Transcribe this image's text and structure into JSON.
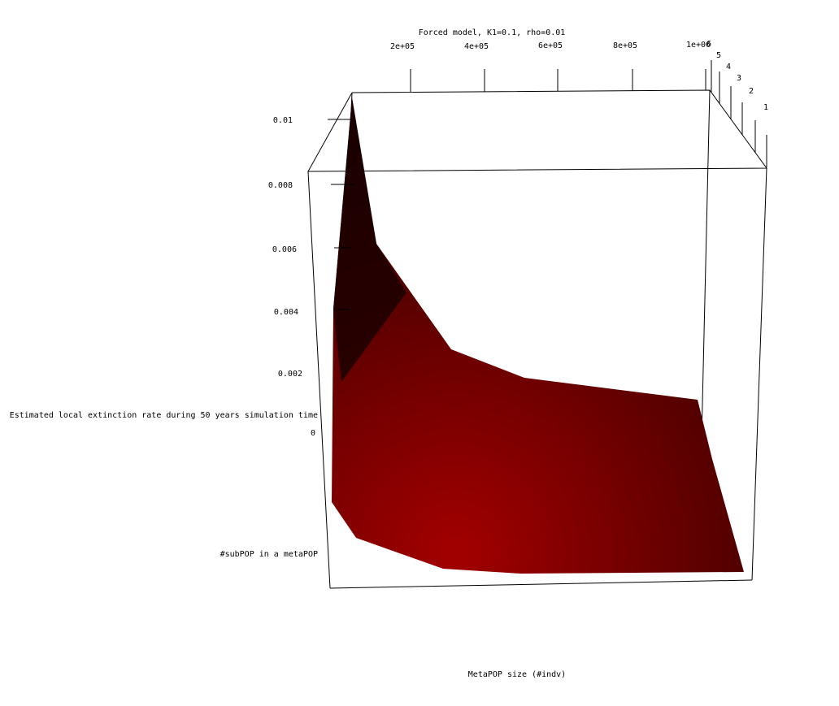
{
  "chart_data": {
    "type": "surface",
    "title": "Forced model, K1=0.1, rho=0.01",
    "xlabel": "MetaPOP size (#indv)",
    "ylabel": "#subPOP in a metaPOP",
    "zlabel": "Estimated local extinction rate during 50 years simulation time",
    "x_ticks": [
      "2e+05",
      "4e+05",
      "6e+05",
      "8e+05",
      "1e+06"
    ],
    "y_ticks": [
      "1",
      "2",
      "3",
      "4",
      "5",
      "6"
    ],
    "z_ticks": [
      "0",
      "0.002",
      "0.004",
      "0.006",
      "0.008",
      "0.01"
    ],
    "x_range": [
      50000,
      1000000
    ],
    "y_range": [
      1,
      6
    ],
    "z_range": [
      0,
      0.01
    ],
    "surface_color": "#8b0000",
    "grid": false
  }
}
